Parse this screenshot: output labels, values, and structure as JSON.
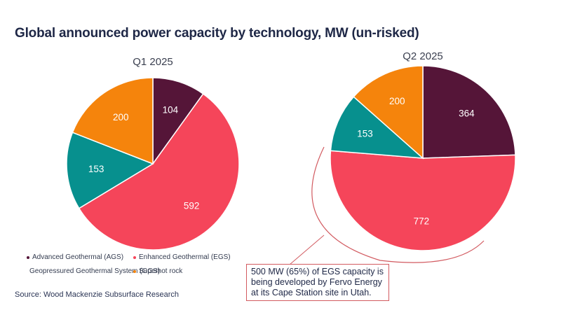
{
  "title": "Global announced power capacity by technology, MW (un-risked)",
  "source": "Source: Wood Mackenzie Subsurface Research",
  "annotation": "500 MW (65%) of EGS capacity is being developed by Fervo Energy at its Cape Station site in Utah.",
  "legend": [
    {
      "name": "Advanced Geothermal (AGS)",
      "color": "#551538"
    },
    {
      "name": "Enhanced Geothermal (EGS)",
      "color": "#f5455a"
    },
    {
      "name": "Geopressured Geothermal System (GGS)",
      "color": "#07908e"
    },
    {
      "name": "Superhot rock",
      "color": "#f5840c"
    }
  ],
  "chart_data": [
    {
      "type": "pie",
      "title": "Q1 2025",
      "labels": [
        "Advanced Geothermal (AGS)",
        "Enhanced Geothermal (EGS)",
        "Geopressured Geothermal System (GGS)",
        "Superhot rock"
      ],
      "values": [
        104,
        592,
        153,
        200
      ],
      "colors": [
        "#551538",
        "#f5455a",
        "#07908e",
        "#f5840c"
      ],
      "start": "12 o'clock",
      "direction": "clockwise"
    },
    {
      "type": "pie",
      "title": "Q2 2025",
      "labels": [
        "Advanced Geothermal (AGS)",
        "Enhanced Geothermal (EGS)",
        "Geopressured Geothermal System (GGS)",
        "Superhot rock"
      ],
      "values": [
        364,
        772,
        153,
        200
      ],
      "colors": [
        "#551538",
        "#f5455a",
        "#07908e",
        "#f5840c"
      ],
      "start": "12 o'clock",
      "direction": "clockwise"
    }
  ]
}
